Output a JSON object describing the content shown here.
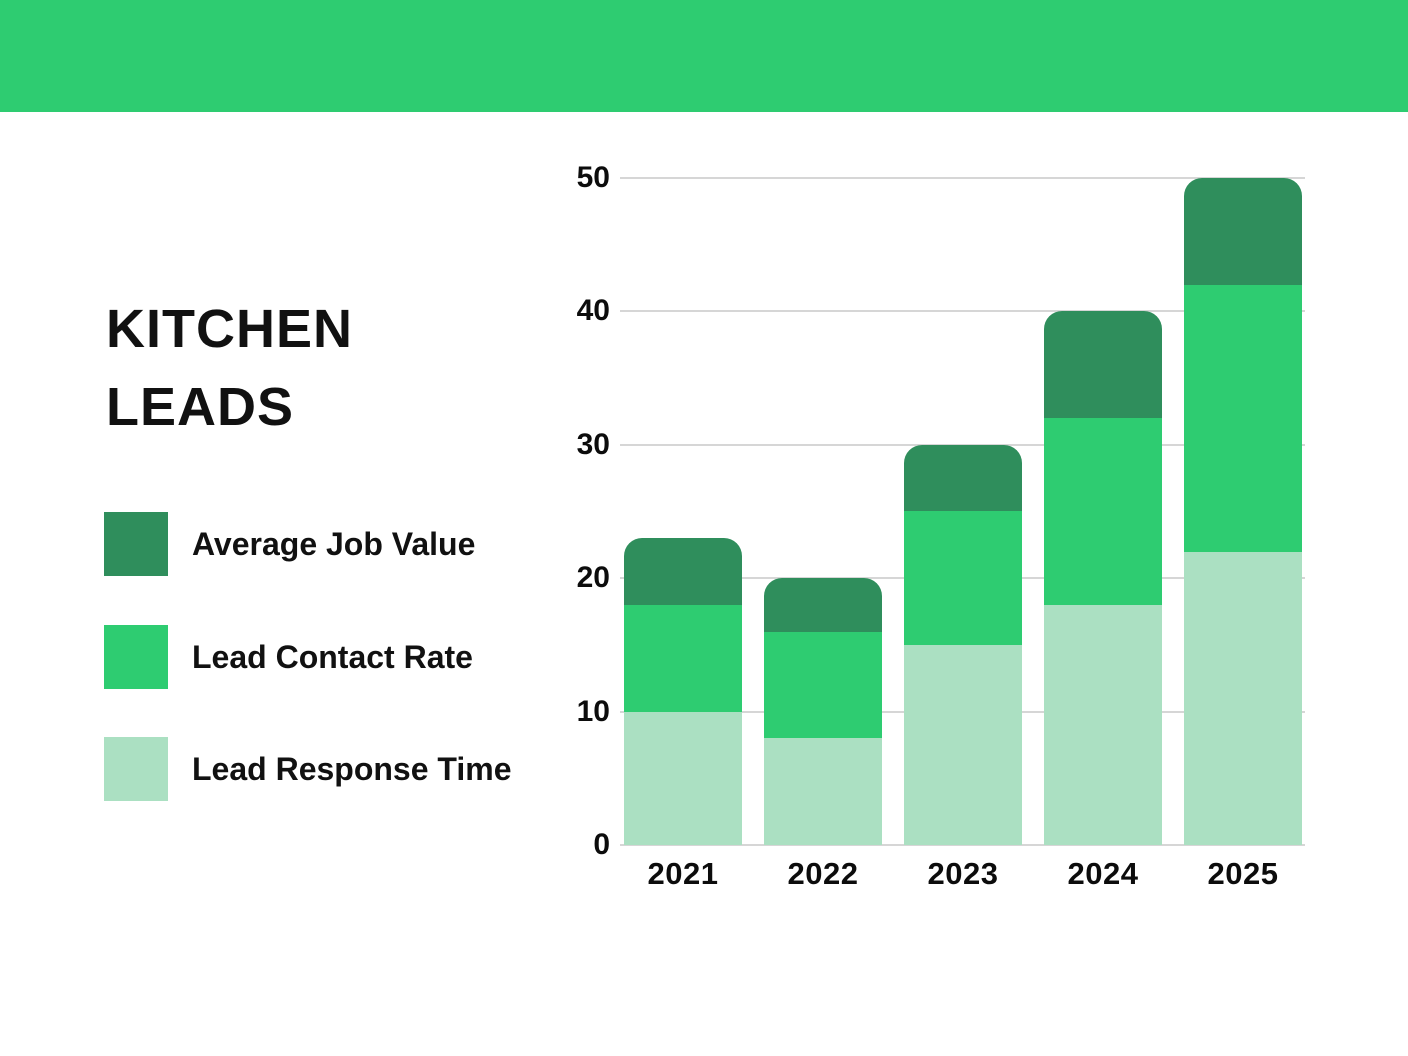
{
  "page": {
    "background": "#ffffff",
    "banner_color": "#2ecc71",
    "text_color": "#111111",
    "gridline_color": "#d6d6d6"
  },
  "title": "KITCHEN LEADS",
  "legend": {
    "items": [
      {
        "label": "Average Job Value",
        "color": "#2f8e5c"
      },
      {
        "label": "Lead Contact Rate",
        "color": "#2ecc71"
      },
      {
        "label": "Lead Response Time",
        "color": "#abe0c2"
      }
    ]
  },
  "chart_data": {
    "type": "bar",
    "stacked": true,
    "title": "KITCHEN LEADS",
    "categories": [
      "2021",
      "2022",
      "2023",
      "2024",
      "2025"
    ],
    "series": [
      {
        "name": "Lead Response Time",
        "color": "#abe0c2",
        "values": [
          10,
          8,
          15,
          18,
          22
        ]
      },
      {
        "name": "Lead Contact Rate",
        "color": "#2ecc71",
        "values": [
          8,
          8,
          10,
          14,
          20
        ]
      },
      {
        "name": "Average Job Value",
        "color": "#2f8e5c",
        "values": [
          5,
          4,
          5,
          8,
          8
        ]
      }
    ],
    "totals": [
      23,
      20,
      30,
      40,
      50
    ],
    "xlabel": "",
    "ylabel": "",
    "ylim": [
      0,
      50
    ],
    "yticks": [
      0,
      10,
      20,
      30,
      40,
      50
    ],
    "grid": true,
    "legend_position": "left"
  }
}
